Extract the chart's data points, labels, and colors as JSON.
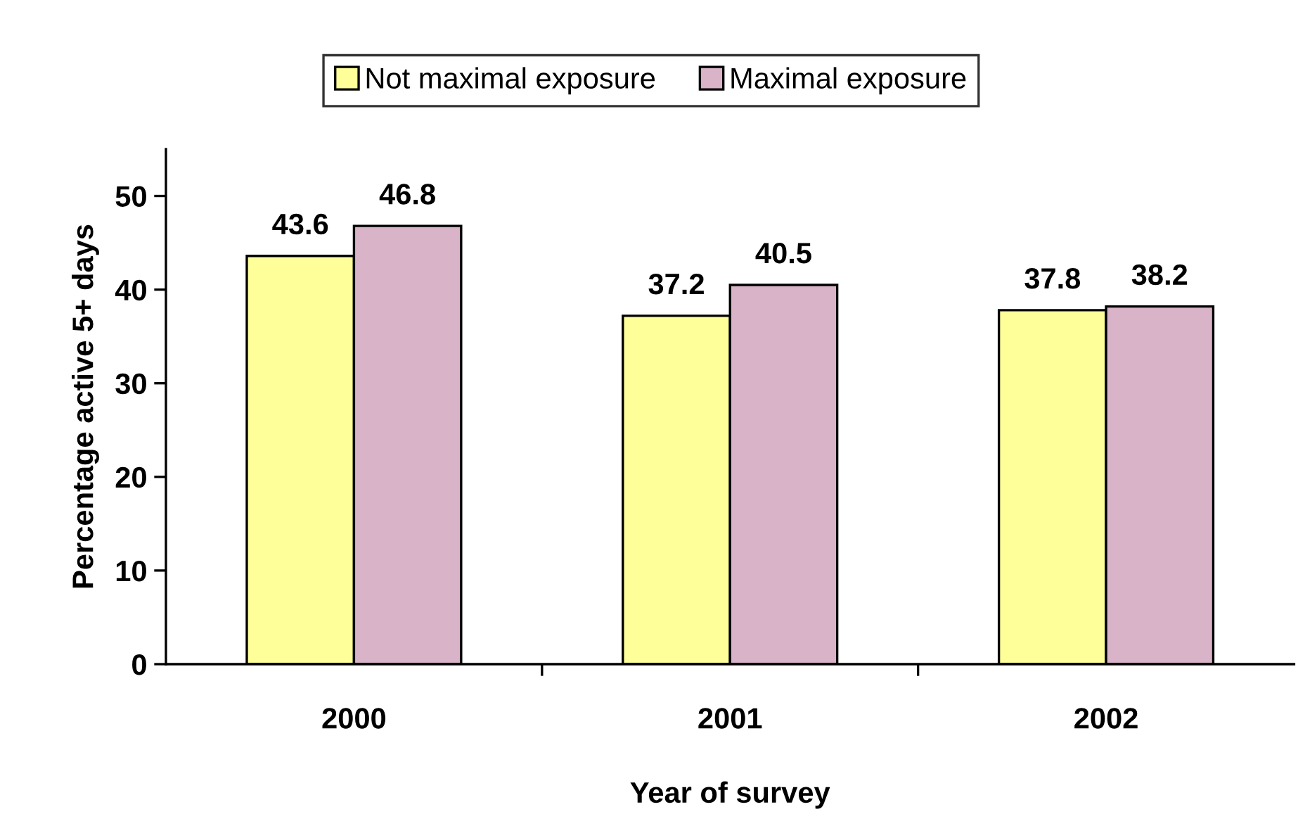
{
  "chart_data": {
    "type": "bar",
    "xlabel": "Year of survey",
    "ylabel": "Percentage active 5+ days",
    "categories": [
      "2000",
      "2001",
      "2002"
    ],
    "series": [
      {
        "name": "Not maximal exposure",
        "color": "#ffff99",
        "values": [
          43.6,
          37.2,
          37.8
        ]
      },
      {
        "name": "Maximal exposure",
        "color": "#d9b3c8",
        "values": [
          46.8,
          40.5,
          38.2
        ]
      }
    ],
    "ylim": [
      0,
      55
    ],
    "yticks": [
      0,
      10,
      20,
      30,
      40,
      50
    ],
    "data_labels": true,
    "legend": "top",
    "grid": false
  }
}
